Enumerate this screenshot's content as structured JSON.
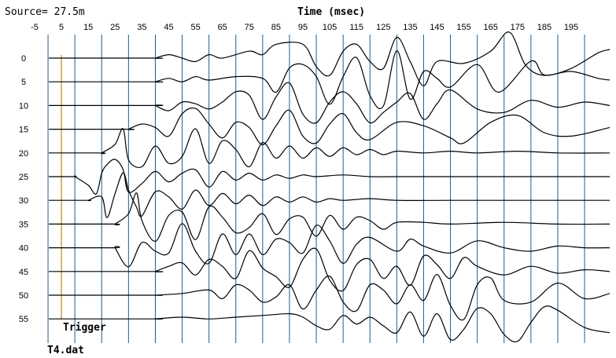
{
  "header": {
    "source_label": "Source= 27.5m",
    "time_axis_label": "Time (msec)"
  },
  "footer": {
    "file_name": "T4.dat",
    "trigger_label": "Trigger"
  },
  "colors": {
    "grid": "#1f5f8b",
    "trigger": "#c8a23a",
    "trace": "#000000",
    "background": "#ffffff"
  },
  "chart_data": {
    "type": "line",
    "title": "",
    "xlabel": "Time (msec)",
    "ylabel": "",
    "x_ticks": [
      -5,
      5,
      15,
      25,
      35,
      45,
      55,
      65,
      75,
      85,
      95,
      105,
      115,
      125,
      135,
      145,
      155,
      165,
      175,
      185,
      195
    ],
    "xlim": [
      -10,
      210
    ],
    "y_ticks": [
      0,
      5,
      10,
      15,
      20,
      25,
      30,
      35,
      40,
      45,
      50,
      55
    ],
    "trigger_time": 5,
    "traces": [
      {
        "offset": 0,
        "onset": 40,
        "x": [
          40,
          45,
          50,
          55,
          60,
          65,
          75,
          80,
          85,
          95,
          100,
          105,
          110,
          115,
          120,
          125,
          130,
          135,
          140,
          145,
          155,
          165,
          172,
          178,
          185,
          195,
          205,
          210
        ],
        "y": [
          0,
          0.2,
          0,
          -0.2,
          0.2,
          0,
          0.4,
          0.2,
          0.8,
          0.8,
          -0.5,
          -1.0,
          0.4,
          0.8,
          -0.2,
          -0.6,
          1.2,
          -0.2,
          -1.6,
          -0.2,
          -0.3,
          0.4,
          1.5,
          -0.4,
          -1.0,
          -0.6,
          0.3,
          0.5
        ]
      },
      {
        "offset": 5,
        "onset": 40,
        "x": [
          40,
          45,
          50,
          55,
          60,
          70,
          80,
          85,
          90,
          95,
          100,
          105,
          110,
          115,
          120,
          125,
          130,
          135,
          140,
          145,
          150,
          160,
          168,
          180,
          185,
          195,
          205,
          210
        ],
        "y": [
          0,
          0.2,
          0,
          0.3,
          0.1,
          0.3,
          0.2,
          -0.6,
          0.8,
          1.0,
          0.3,
          -1.3,
          0.3,
          1.4,
          -0.8,
          -1.4,
          1.8,
          -1.0,
          0.6,
          0.2,
          -0.3,
          1.0,
          -0.6,
          1.2,
          0.4,
          0.6,
          0.2,
          0.1
        ]
      },
      {
        "offset": 10,
        "onset": 40,
        "x": [
          40,
          45,
          50,
          55,
          60,
          65,
          70,
          75,
          80,
          85,
          90,
          95,
          100,
          105,
          110,
          115,
          120,
          125,
          130,
          135,
          140,
          145,
          150,
          160,
          170,
          180,
          190,
          200,
          210
        ],
        "y": [
          0,
          -0.3,
          0.2,
          0.1,
          -0.2,
          0.2,
          0.8,
          0.6,
          -0.8,
          0.5,
          1.3,
          -0.5,
          -1.0,
          0.2,
          0.8,
          0.1,
          -1.0,
          -0.4,
          0.2,
          0.7,
          -0.8,
          0.1,
          0.9,
          -0.2,
          -0.4,
          0.3,
          -0.1,
          0.2,
          0.0
        ]
      },
      {
        "offset": 15,
        "onset": 30,
        "x": [
          30,
          35,
          40,
          45,
          50,
          55,
          60,
          65,
          70,
          75,
          80,
          85,
          90,
          95,
          100,
          105,
          110,
          115,
          120,
          130,
          140,
          150,
          155,
          165,
          175,
          185,
          195,
          210
        ],
        "y": [
          0,
          0.3,
          0.1,
          -0.4,
          0.9,
          1.2,
          0.3,
          -0.5,
          0.4,
          0.1,
          -0.9,
          0.2,
          1.1,
          -0.4,
          -0.8,
          0.3,
          0.9,
          -0.2,
          -0.6,
          0.4,
          0.2,
          -0.5,
          -0.8,
          0.4,
          0.8,
          -0.2,
          -0.4,
          0.1
        ]
      },
      {
        "offset": 20,
        "onset": 20,
        "x": [
          20,
          25,
          28,
          30,
          35,
          40,
          45,
          50,
          55,
          60,
          65,
          70,
          75,
          80,
          85,
          90,
          95,
          100,
          105,
          110,
          115,
          120,
          125,
          130,
          140,
          150,
          160,
          175,
          190,
          210
        ],
        "y": [
          0,
          0.5,
          1.4,
          -0.4,
          -0.8,
          0.4,
          -0.6,
          -0.2,
          1.4,
          -0.6,
          0.7,
          0.2,
          -0.8,
          0.6,
          -0.3,
          0.4,
          -0.3,
          0.3,
          -0.2,
          0.3,
          -0.1,
          0.2,
          -0.1,
          0.1,
          0,
          0.1,
          0,
          0.1,
          0,
          0
        ]
      },
      {
        "offset": 25,
        "onset": 10,
        "x": [
          10,
          15,
          18,
          20,
          22,
          25,
          28,
          30,
          35,
          40,
          45,
          50,
          55,
          60,
          65,
          70,
          75,
          80,
          85,
          90,
          95,
          100,
          110,
          120,
          130,
          150,
          170,
          190,
          210
        ],
        "y": [
          0,
          -0.5,
          -1.0,
          0.2,
          0.7,
          1.0,
          0.4,
          -0.9,
          -0.4,
          0.3,
          -0.3,
          0.2,
          0.4,
          -0.6,
          0.3,
          -0.2,
          0.2,
          -0.2,
          0.1,
          -0.1,
          0.1,
          0,
          0.1,
          0,
          0,
          0,
          0,
          0,
          0
        ]
      },
      {
        "offset": 30,
        "onset": 15,
        "x": [
          15,
          20,
          22,
          25,
          28,
          30,
          33,
          35,
          40,
          45,
          50,
          55,
          60,
          65,
          70,
          75,
          80,
          85,
          90,
          95,
          100,
          105,
          110,
          120,
          130,
          150,
          170,
          190,
          210
        ],
        "y": [
          0,
          0.2,
          -1.0,
          0.4,
          1.6,
          0.6,
          -0.4,
          -0.9,
          0.5,
          0.2,
          -0.5,
          0.6,
          -0.3,
          0.4,
          -0.2,
          0.3,
          -0.3,
          0.2,
          -0.1,
          0.2,
          -0.1,
          0.1,
          0,
          0.1,
          0,
          0,
          0,
          0,
          0
        ]
      },
      {
        "offset": 35,
        "onset": 25,
        "x": [
          25,
          30,
          33,
          35,
          40,
          45,
          50,
          55,
          60,
          65,
          70,
          75,
          80,
          85,
          90,
          95,
          100,
          105,
          110,
          115,
          120,
          125,
          130,
          140,
          150,
          170,
          190,
          210
        ],
        "y": [
          0,
          0.6,
          1.8,
          0.2,
          -1.0,
          0.5,
          0.7,
          -0.9,
          1.0,
          0.4,
          -0.5,
          -0.2,
          0.6,
          -0.6,
          0.3,
          0.4,
          -0.7,
          0.5,
          -0.3,
          0.4,
          0.2,
          -0.3,
          0.1,
          0.1,
          0,
          0.1,
          0,
          0
        ]
      },
      {
        "offset": 40,
        "onset": 25,
        "x": [
          25,
          30,
          35,
          40,
          45,
          50,
          55,
          60,
          65,
          70,
          75,
          80,
          85,
          90,
          95,
          100,
          105,
          110,
          115,
          120,
          130,
          135,
          140,
          150,
          160,
          170,
          180,
          190,
          200,
          210
        ],
        "y": [
          0,
          -1.1,
          0.3,
          -0.2,
          -0.3,
          1.4,
          -0.2,
          -0.9,
          0.8,
          -0.4,
          0.8,
          -0.4,
          0.5,
          0.3,
          -0.3,
          1.3,
          0.4,
          -0.9,
          0.2,
          0.6,
          -0.2,
          0.5,
          0.1,
          -0.3,
          0.4,
          0,
          -0.2,
          0.1,
          0,
          0
        ]
      },
      {
        "offset": 45,
        "onset": 40,
        "x": [
          40,
          45,
          50,
          55,
          60,
          65,
          70,
          75,
          80,
          85,
          90,
          95,
          100,
          105,
          110,
          115,
          120,
          125,
          130,
          135,
          140,
          145,
          150,
          155,
          160,
          170,
          180,
          190,
          200,
          210
        ],
        "y": [
          0,
          0.3,
          0.5,
          -0.2,
          0.7,
          0.3,
          -0.4,
          1.2,
          0.2,
          -0.3,
          -0.9,
          0.7,
          1.3,
          -0.5,
          -1.1,
          0.4,
          0.7,
          -0.4,
          0.3,
          -0.8,
          0.9,
          0.4,
          -0.4,
          0.8,
          0.3,
          -0.2,
          0.3,
          -0.1,
          0.1,
          0
        ]
      },
      {
        "offset": 50,
        "onset": 40,
        "x": [
          40,
          50,
          60,
          65,
          70,
          75,
          80,
          85,
          90,
          95,
          100,
          105,
          110,
          115,
          120,
          125,
          130,
          135,
          140,
          145,
          150,
          155,
          160,
          165,
          170,
          180,
          190,
          200,
          210
        ],
        "y": [
          0,
          0.1,
          0.3,
          -0.2,
          0.6,
          0.3,
          -0.4,
          -0.1,
          0.6,
          -0.8,
          0.3,
          1.1,
          -0.4,
          -0.9,
          0.6,
          0.3,
          -0.5,
          0.6,
          -0.3,
          1.2,
          -0.6,
          -1.4,
          0.6,
          1.0,
          -0.3,
          -0.4,
          0.7,
          -0.2,
          0.1
        ]
      },
      {
        "offset": 55,
        "onset": 40,
        "x": [
          40,
          50,
          60,
          70,
          80,
          90,
          95,
          100,
          105,
          110,
          115,
          120,
          125,
          130,
          135,
          140,
          145,
          150,
          155,
          160,
          165,
          170,
          175,
          180,
          185,
          190,
          200,
          210
        ],
        "y": [
          0,
          0.1,
          0,
          0.1,
          0.2,
          0.3,
          0.1,
          -0.4,
          -0.6,
          0.2,
          -0.3,
          0.1,
          -0.4,
          -0.8,
          0.4,
          -1.0,
          0.3,
          -1.2,
          -0.6,
          0.6,
          0.3,
          -0.9,
          -1.3,
          -0.2,
          0.7,
          0.5,
          -0.5,
          -0.8
        ]
      }
    ]
  }
}
